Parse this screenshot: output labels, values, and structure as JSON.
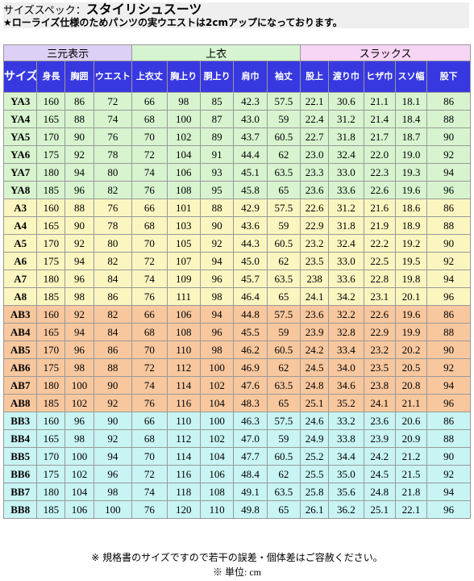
{
  "header": {
    "prefix": "サイズスペック：",
    "title": "スタイリシュスーツ",
    "note": "★ローライズ仕様のためパンツの実ウエストは2cmアップになっております。"
  },
  "groups": [
    {
      "label": "三元表示",
      "span": 3
    },
    {
      "label": "上衣",
      "span": 6
    },
    {
      "label": "スラックス",
      "span": 6
    }
  ],
  "columns": [
    "サイズ",
    "身長",
    "胸囲",
    "ウエスト",
    "上衣丈",
    "胸上り",
    "胴上り",
    "肩巾",
    "袖丈",
    "股上",
    "渡り巾",
    "ヒザ巾",
    "スソ幅",
    "股下"
  ],
  "rows": [
    {
      "tone": "ya",
      "cells": [
        "YA3",
        "160",
        "86",
        "72",
        "66",
        "98",
        "85",
        "42.3",
        "57.5",
        "22.1",
        "30.6",
        "21.1",
        "18.1",
        "86"
      ]
    },
    {
      "tone": "ya",
      "cells": [
        "YA4",
        "165",
        "88",
        "74",
        "68",
        "100",
        "87",
        "43.0",
        "59",
        "22.4",
        "31.2",
        "21.4",
        "18.4",
        "88"
      ]
    },
    {
      "tone": "ya",
      "cells": [
        "YA5",
        "170",
        "90",
        "76",
        "70",
        "102",
        "89",
        "43.7",
        "60.5",
        "22.7",
        "31.8",
        "21.7",
        "18.7",
        "90"
      ]
    },
    {
      "tone": "ya",
      "cells": [
        "YA6",
        "175",
        "92",
        "78",
        "72",
        "104",
        "91",
        "44.4",
        "62",
        "23.0",
        "32.4",
        "22.0",
        "19.0",
        "92"
      ]
    },
    {
      "tone": "ya",
      "cells": [
        "YA7",
        "180",
        "94",
        "80",
        "74",
        "106",
        "93",
        "45.1",
        "63.5",
        "23.3",
        "33.0",
        "22.3",
        "19.3",
        "94"
      ]
    },
    {
      "tone": "ya",
      "cells": [
        "YA8",
        "185",
        "96",
        "82",
        "76",
        "108",
        "95",
        "45.8",
        "65",
        "23.6",
        "33.6",
        "22.6",
        "19.6",
        "96"
      ]
    },
    {
      "tone": "a",
      "cells": [
        "A3",
        "160",
        "88",
        "76",
        "66",
        "101",
        "88",
        "42.9",
        "57.5",
        "22.6",
        "31.2",
        "21.6",
        "18.6",
        "86"
      ]
    },
    {
      "tone": "a",
      "cells": [
        "A4",
        "165",
        "90",
        "78",
        "68",
        "103",
        "90",
        "43.6",
        "59",
        "22.9",
        "31.8",
        "21.9",
        "18.9",
        "88"
      ]
    },
    {
      "tone": "a",
      "cells": [
        "A5",
        "170",
        "92",
        "80",
        "70",
        "105",
        "92",
        "44.3",
        "60.5",
        "23.2",
        "32.4",
        "22.2",
        "19.2",
        "90"
      ]
    },
    {
      "tone": "a",
      "cells": [
        "A6",
        "175",
        "94",
        "82",
        "72",
        "107",
        "94",
        "45.0",
        "62",
        "23.5",
        "33.0",
        "22.5",
        "19.5",
        "92"
      ]
    },
    {
      "tone": "a",
      "cells": [
        "A7",
        "180",
        "96",
        "84",
        "74",
        "109",
        "96",
        "45.7",
        "63.5",
        "238",
        "33.6",
        "22.8",
        "19.8",
        "94"
      ]
    },
    {
      "tone": "a",
      "cells": [
        "A8",
        "185",
        "98",
        "86",
        "76",
        "111",
        "98",
        "46.4",
        "65",
        "24.1",
        "34.2",
        "23.1",
        "20.1",
        "96"
      ]
    },
    {
      "tone": "ab",
      "cells": [
        "AB3",
        "160",
        "92",
        "82",
        "66",
        "106",
        "94",
        "44.8",
        "57.5",
        "23.6",
        "32.2",
        "22.6",
        "19.6",
        "86"
      ]
    },
    {
      "tone": "ab",
      "cells": [
        "AB4",
        "165",
        "94",
        "84",
        "68",
        "108",
        "96",
        "45.5",
        "59",
        "23.9",
        "32.8",
        "22.9",
        "19.9",
        "88"
      ]
    },
    {
      "tone": "ab",
      "cells": [
        "AB5",
        "170",
        "96",
        "86",
        "70",
        "110",
        "98",
        "46.2",
        "60.5",
        "24.2",
        "33.4",
        "23.2",
        "20.2",
        "90"
      ]
    },
    {
      "tone": "ab",
      "cells": [
        "AB6",
        "175",
        "98",
        "88",
        "72",
        "112",
        "100",
        "46.9",
        "62",
        "24.5",
        "34.0",
        "23.5",
        "20.5",
        "92"
      ]
    },
    {
      "tone": "ab",
      "cells": [
        "AB7",
        "180",
        "100",
        "90",
        "74",
        "114",
        "102",
        "47.6",
        "63.5",
        "24.8",
        "34.6",
        "23.8",
        "20.8",
        "94"
      ]
    },
    {
      "tone": "ab",
      "cells": [
        "AB8",
        "185",
        "102",
        "92",
        "76",
        "116",
        "104",
        "48.3",
        "65",
        "25.1",
        "35.2",
        "24.1",
        "21.1",
        "96"
      ]
    },
    {
      "tone": "bb",
      "cells": [
        "BB3",
        "160",
        "96",
        "90",
        "66",
        "110",
        "100",
        "46.3",
        "57.5",
        "24.6",
        "33.2",
        "23.6",
        "20.6",
        "86"
      ]
    },
    {
      "tone": "bb",
      "cells": [
        "BB4",
        "165",
        "98",
        "92",
        "68",
        "112",
        "102",
        "47.0",
        "59",
        "24.9",
        "33.8",
        "23.9",
        "20.9",
        "88"
      ]
    },
    {
      "tone": "bb",
      "cells": [
        "BB5",
        "170",
        "100",
        "94",
        "70",
        "114",
        "104",
        "47.7",
        "60.5",
        "25.2",
        "34.4",
        "24.2",
        "21.2",
        "90"
      ]
    },
    {
      "tone": "bb",
      "cells": [
        "BB6",
        "175",
        "102",
        "96",
        "72",
        "116",
        "106",
        "48.4",
        "62",
        "25.5",
        "35.0",
        "24.5",
        "21.5",
        "92"
      ]
    },
    {
      "tone": "bb",
      "cells": [
        "BB7",
        "180",
        "104",
        "98",
        "74",
        "118",
        "108",
        "49.1",
        "63.5",
        "25.8",
        "35.6",
        "24.8",
        "21.8",
        "94"
      ]
    },
    {
      "tone": "bb",
      "cells": [
        "BB8",
        "185",
        "106",
        "100",
        "76",
        "120",
        "110",
        "49.8",
        "65",
        "26.1",
        "36.2",
        "25.1",
        "22.1",
        "96"
      ]
    }
  ],
  "footer": {
    "disclaimer": "※ 規格書のサイズですので若干の誤差・個体差はご容赦ください。",
    "unit": "※ 単位: cm"
  },
  "colors": {
    "header_blue": "#3838e0",
    "group_3d": "#ddd0f5",
    "group_top": "#d6f4d0",
    "group_slacks": "#f6d6f4",
    "row_ya": "#d7f4cf",
    "row_a": "#fbf6c0",
    "row_ab": "#f8c79e",
    "row_bb": "#c8f4f4"
  }
}
